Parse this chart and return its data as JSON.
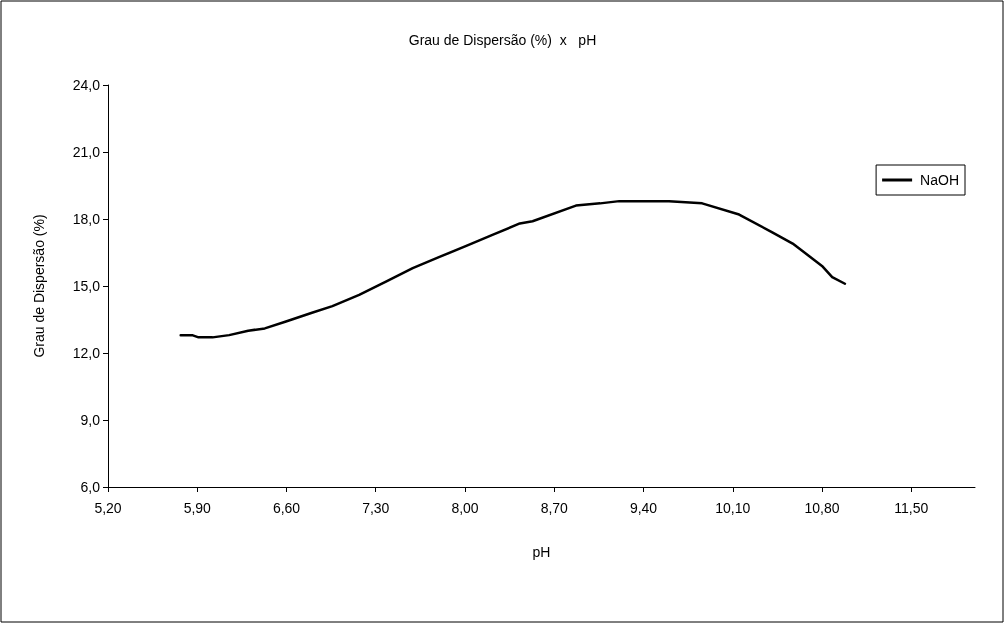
{
  "chart_data": {
    "type": "line",
    "title": "Grau de Dispersão (%)  x   pH",
    "xlabel": "pH",
    "ylabel": "Grau de Dispersão (%)",
    "xlim": [
      5.2,
      12.0
    ],
    "xticks": [
      {
        "value": 5.2,
        "label": "5,20"
      },
      {
        "value": 5.9,
        "label": "5,90"
      },
      {
        "value": 6.6,
        "label": "6,60"
      },
      {
        "value": 7.3,
        "label": "7,30"
      },
      {
        "value": 8.0,
        "label": "8,00"
      },
      {
        "value": 8.7,
        "label": "8,70"
      },
      {
        "value": 9.4,
        "label": "9,40"
      },
      {
        "value": 10.1,
        "label": "10,10"
      },
      {
        "value": 10.8,
        "label": "10,80"
      },
      {
        "value": 11.5,
        "label": "11,50"
      }
    ],
    "ylim": [
      6,
      24
    ],
    "yticks": [
      {
        "value": 6,
        "label": "6,0"
      },
      {
        "value": 9,
        "label": "9,0"
      },
      {
        "value": 12,
        "label": "12,0"
      },
      {
        "value": 15,
        "label": "15,0"
      },
      {
        "value": 18,
        "label": "18,0"
      },
      {
        "value": 21,
        "label": "21,0"
      },
      {
        "value": 24,
        "label": "24,0"
      }
    ],
    "grid": false,
    "legend": "right",
    "series": [
      {
        "name": "NaOH",
        "color": "#000000",
        "x": [
          5.77,
          5.86,
          5.91,
          6.02,
          6.15,
          6.3,
          6.43,
          6.59,
          6.8,
          6.96,
          7.17,
          7.38,
          7.59,
          7.8,
          8.01,
          8.22,
          8.43,
          8.53,
          8.87,
          9.06,
          9.21,
          9.6,
          9.86,
          10.15,
          10.41,
          10.57,
          10.8,
          10.88,
          10.98
        ],
        "values": [
          12.8,
          12.8,
          12.7,
          12.7,
          12.8,
          13.0,
          13.1,
          13.4,
          13.8,
          14.1,
          14.6,
          15.2,
          15.8,
          16.3,
          16.8,
          17.3,
          17.8,
          17.9,
          18.6,
          18.7,
          18.8,
          18.8,
          18.7,
          18.2,
          17.4,
          16.9,
          15.9,
          15.4,
          15.1
        ]
      }
    ]
  }
}
